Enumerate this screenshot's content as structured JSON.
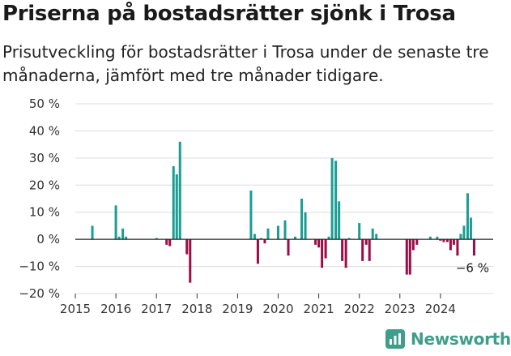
{
  "chart_data": {
    "type": "bar",
    "title": "Priserna på bostadsrätter sjönk i Trosa",
    "subtitle": "Prisutveckling för bostadsrätter i Trosa under de senaste tre månaderna, jämfört med tre månader tidigare.",
    "ylim": [
      -20,
      50
    ],
    "y_ticks": [
      {
        "value": 50,
        "label": "50 %"
      },
      {
        "value": 40,
        "label": "40 %"
      },
      {
        "value": 30,
        "label": "30 %"
      },
      {
        "value": 20,
        "label": "20 %"
      },
      {
        "value": 10,
        "label": "10 %"
      },
      {
        "value": 0,
        "label": "0 %"
      },
      {
        "value": -10,
        "label": "−10 %"
      },
      {
        "value": -20,
        "label": "−20 %"
      }
    ],
    "x_ticks": [
      {
        "year": 2015,
        "label": "2015"
      },
      {
        "year": 2016,
        "label": "2016"
      },
      {
        "year": 2017,
        "label": "2017"
      },
      {
        "year": 2018,
        "label": "2018"
      },
      {
        "year": 2019,
        "label": "2019"
      },
      {
        "year": 2020,
        "label": "2020"
      },
      {
        "year": 2021,
        "label": "2021"
      },
      {
        "year": 2022,
        "label": "2022"
      },
      {
        "year": 2023,
        "label": "2023"
      },
      {
        "year": 2024,
        "label": "2024"
      }
    ],
    "x_range": [
      2015.0,
      2025.3
    ],
    "positive_color": "#1a9e94",
    "negative_color": "#9b0d47",
    "end_label": "−6 %",
    "series": [
      {
        "name": "Prisutveckling",
        "points": [
          {
            "x": 2015.42,
            "y": 5
          },
          {
            "x": 2016.0,
            "y": 12.5
          },
          {
            "x": 2016.08,
            "y": 1
          },
          {
            "x": 2016.17,
            "y": 4
          },
          {
            "x": 2016.25,
            "y": 1
          },
          {
            "x": 2017.0,
            "y": 0.5
          },
          {
            "x": 2017.25,
            "y": -2
          },
          {
            "x": 2017.33,
            "y": -2.5
          },
          {
            "x": 2017.42,
            "y": 27
          },
          {
            "x": 2017.5,
            "y": 24
          },
          {
            "x": 2017.58,
            "y": 36
          },
          {
            "x": 2017.75,
            "y": -5.5
          },
          {
            "x": 2017.83,
            "y": -16
          },
          {
            "x": 2019.33,
            "y": 18
          },
          {
            "x": 2019.42,
            "y": 2
          },
          {
            "x": 2019.5,
            "y": -9
          },
          {
            "x": 2019.58,
            "y": 0.5
          },
          {
            "x": 2019.67,
            "y": -1.5
          },
          {
            "x": 2019.75,
            "y": 4
          },
          {
            "x": 2020.0,
            "y": 5
          },
          {
            "x": 2020.17,
            "y": 7
          },
          {
            "x": 2020.25,
            "y": -6
          },
          {
            "x": 2020.42,
            "y": 1
          },
          {
            "x": 2020.58,
            "y": 15
          },
          {
            "x": 2020.67,
            "y": 10
          },
          {
            "x": 2020.92,
            "y": -2
          },
          {
            "x": 2021.0,
            "y": -3
          },
          {
            "x": 2021.08,
            "y": -10.5
          },
          {
            "x": 2021.17,
            "y": -7
          },
          {
            "x": 2021.25,
            "y": 1
          },
          {
            "x": 2021.33,
            "y": 30
          },
          {
            "x": 2021.42,
            "y": 29
          },
          {
            "x": 2021.5,
            "y": 14
          },
          {
            "x": 2021.58,
            "y": -8
          },
          {
            "x": 2021.67,
            "y": -10.5
          },
          {
            "x": 2021.75,
            "y": 0.5
          },
          {
            "x": 2022.0,
            "y": 6
          },
          {
            "x": 2022.08,
            "y": -8
          },
          {
            "x": 2022.17,
            "y": -2
          },
          {
            "x": 2022.25,
            "y": -8
          },
          {
            "x": 2022.33,
            "y": 4
          },
          {
            "x": 2022.42,
            "y": 2
          },
          {
            "x": 2023.17,
            "y": -13
          },
          {
            "x": 2023.25,
            "y": -13
          },
          {
            "x": 2023.33,
            "y": -4
          },
          {
            "x": 2023.42,
            "y": -2
          },
          {
            "x": 2023.75,
            "y": 1
          },
          {
            "x": 2023.92,
            "y": 1
          },
          {
            "x": 2024.0,
            "y": -0.5
          },
          {
            "x": 2024.08,
            "y": -1
          },
          {
            "x": 2024.17,
            "y": -1
          },
          {
            "x": 2024.25,
            "y": -4
          },
          {
            "x": 2024.33,
            "y": -2
          },
          {
            "x": 2024.42,
            "y": -6
          },
          {
            "x": 2024.5,
            "y": 2
          },
          {
            "x": 2024.58,
            "y": 5
          },
          {
            "x": 2024.67,
            "y": 17
          },
          {
            "x": 2024.75,
            "y": 8
          },
          {
            "x": 2024.83,
            "y": -6
          }
        ]
      }
    ]
  },
  "brand": {
    "name": "Newsworthy",
    "color": "#3f9e8b",
    "icon": "newsworthy-logo-icon"
  }
}
